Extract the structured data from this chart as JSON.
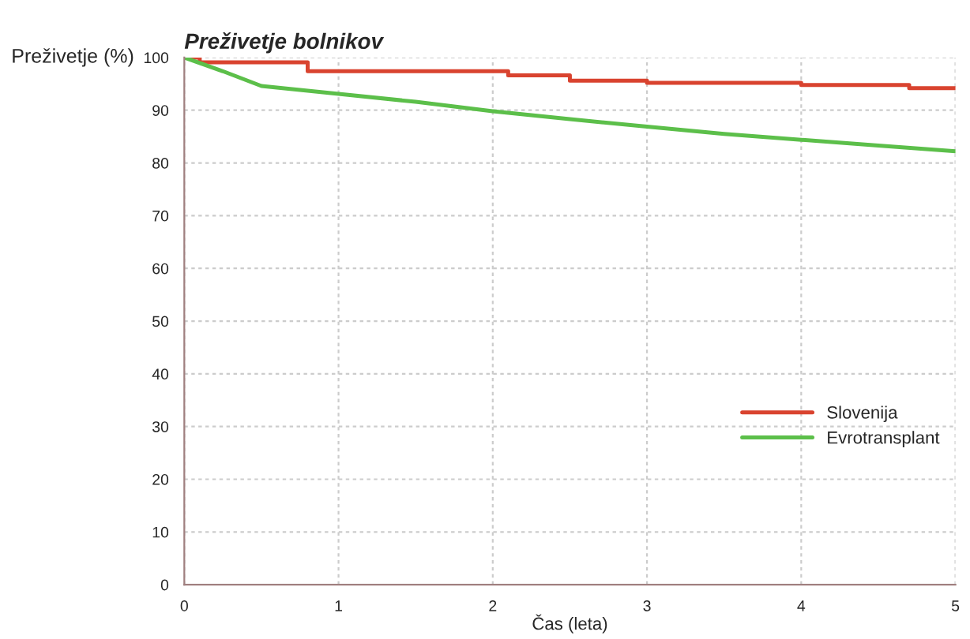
{
  "chart_data": {
    "type": "line",
    "title": "Preživetje bolnikov",
    "xlabel": "Čas (leta)",
    "ylabel": "Preživetje (%)",
    "xlim": [
      0,
      5
    ],
    "xticks": [
      0,
      1,
      2,
      3,
      4,
      5
    ],
    "ylim": [
      0,
      100
    ],
    "yticks": [
      0,
      10,
      20,
      30,
      40,
      50,
      60,
      70,
      80,
      90,
      100
    ],
    "grid": true,
    "legend": "right",
    "series": [
      {
        "name": "Slovenija",
        "color": "#d9432f",
        "type": "step",
        "x": [
          0,
          0.1,
          0.8,
          2.1,
          2.5,
          3.0,
          4.0,
          4.7,
          5.0
        ],
        "values": [
          100,
          99.1,
          97.4,
          96.6,
          95.6,
          95.2,
          94.8,
          94.2,
          94.2
        ]
      },
      {
        "name": "Evrotransplant",
        "color": "#5cbf4a",
        "x": [
          0,
          0.25,
          0.5,
          1,
          1.5,
          2,
          2.5,
          3,
          3.5,
          4,
          4.5,
          5
        ],
        "values": [
          100,
          97.4,
          94.6,
          93.1,
          91.6,
          89.8,
          88.3,
          86.9,
          85.5,
          84.4,
          83.3,
          82.2
        ]
      }
    ]
  }
}
